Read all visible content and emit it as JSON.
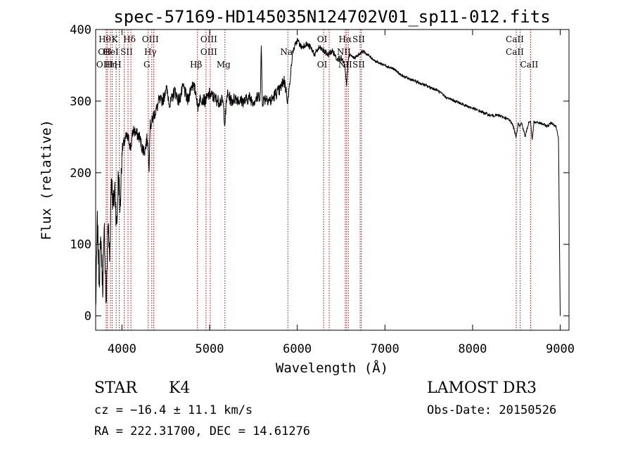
{
  "chart_data": {
    "type": "line",
    "title": "spec-57169-HD145035N124702V01_sp11-012.fits",
    "xlabel": "Wavelength (Å)",
    "ylabel": "Flux (relative)",
    "xlim": [
      3700,
      9100
    ],
    "ylim": [
      -20,
      400
    ],
    "xticks": [
      4000,
      5000,
      6000,
      7000,
      8000,
      9000
    ],
    "yticks": [
      0,
      100,
      200,
      300,
      400
    ],
    "series": [
      {
        "name": "flux",
        "x": [
          3700,
          3720,
          3740,
          3760,
          3780,
          3800,
          3820,
          3840,
          3860,
          3880,
          3900,
          3920,
          3940,
          3960,
          3980,
          4000,
          4020,
          4050,
          4080,
          4100,
          4130,
          4160,
          4200,
          4230,
          4260,
          4290,
          4310,
          4320,
          4340,
          4360,
          4380,
          4400,
          4420,
          4450,
          4480,
          4500,
          4550,
          4600,
          4650,
          4700,
          4750,
          4800,
          4850,
          4861,
          4880,
          4900,
          4950,
          5000,
          5050,
          5100,
          5150,
          5175,
          5200,
          5250,
          5300,
          5350,
          5400,
          5450,
          5500,
          5550,
          5580,
          5590,
          5600,
          5650,
          5700,
          5750,
          5800,
          5850,
          5893,
          5950,
          6000,
          6050,
          6100,
          6150,
          6200,
          6250,
          6300,
          6350,
          6400,
          6450,
          6500,
          6540,
          6563,
          6580,
          6600,
          6650,
          6700,
          6750,
          6800,
          6900,
          7000,
          7100,
          7200,
          7300,
          7400,
          7500,
          7600,
          7700,
          7800,
          7900,
          8000,
          8100,
          8200,
          8300,
          8400,
          8450,
          8498,
          8520,
          8542,
          8560,
          8600,
          8640,
          8662,
          8680,
          8700,
          8750,
          8800,
          8850,
          8900,
          8950,
          8980,
          8990,
          9000
        ],
        "y": [
          10,
          130,
          50,
          110,
          40,
          120,
          10,
          130,
          80,
          200,
          150,
          180,
          120,
          200,
          150,
          230,
          240,
          250,
          245,
          235,
          260,
          255,
          250,
          235,
          230,
          250,
          210,
          265,
          270,
          280,
          285,
          290,
          300,
          300,
          305,
          320,
          295,
          315,
          300,
          320,
          300,
          325,
          310,
          290,
          300,
          305,
          300,
          310,
          305,
          300,
          300,
          270,
          310,
          300,
          305,
          300,
          300,
          305,
          300,
          305,
          310,
          380,
          300,
          305,
          300,
          310,
          315,
          330,
          300,
          370,
          385,
          375,
          380,
          375,
          365,
          375,
          370,
          365,
          370,
          360,
          360,
          350,
          320,
          355,
          365,
          360,
          365,
          370,
          365,
          355,
          350,
          345,
          335,
          330,
          325,
          320,
          315,
          305,
          300,
          295,
          290,
          285,
          280,
          280,
          275,
          270,
          250,
          270,
          265,
          270,
          250,
          270,
          272,
          245,
          270,
          270,
          268,
          265,
          270,
          265,
          250,
          120,
          0
        ]
      }
    ],
    "lines": [
      {
        "x": 3820,
        "labels": [
          "Hθ",
          "OII",
          "OIII"
        ]
      },
      {
        "x": 3835,
        "labels": []
      },
      {
        "x": 3869,
        "labels": [
          "",
          "",
          ""
        ]
      },
      {
        "x": 3889,
        "labels": [
          "",
          "HeI",
          "Hη"
        ]
      },
      {
        "x": 3934,
        "labels": [
          "K",
          "",
          ""
        ]
      },
      {
        "x": 3969,
        "labels": [
          "",
          "",
          "H"
        ]
      },
      {
        "x": 4026,
        "labels": [
          "",
          "",
          ""
        ]
      },
      {
        "x": 4069,
        "labels": [
          "",
          "SII",
          ""
        ]
      },
      {
        "x": 4102,
        "labels": [
          "Hδ",
          "",
          ""
        ]
      },
      {
        "x": 4300,
        "labels": [
          "",
          "",
          "G"
        ]
      },
      {
        "x": 4340,
        "labels": [
          "OIII",
          "Hγ",
          ""
        ]
      },
      {
        "x": 4363,
        "labels": []
      },
      {
        "x": 4861,
        "labels": [
          "",
          "",
          "Hβ"
        ]
      },
      {
        "x": 4959,
        "labels": []
      },
      {
        "x": 5007,
        "labels": [
          "OIII",
          "OIII",
          ""
        ]
      },
      {
        "x": 5175,
        "labels": [
          "",
          "",
          "Mg"
        ]
      },
      {
        "x": 5893,
        "labels": [
          "",
          "Na",
          ""
        ]
      },
      {
        "x": 6300,
        "labels": [
          "OI",
          "",
          "OI"
        ]
      },
      {
        "x": 6364,
        "labels": []
      },
      {
        "x": 6548,
        "labels": [
          "",
          "NII",
          ""
        ]
      },
      {
        "x": 6563,
        "labels": [
          "Hα",
          "",
          "NII"
        ]
      },
      {
        "x": 6583,
        "labels": []
      },
      {
        "x": 6717,
        "labels": [
          "SII",
          "",
          "SII"
        ]
      },
      {
        "x": 6731,
        "labels": []
      },
      {
        "x": 8498,
        "labels": [
          "CaII",
          "CaII",
          ""
        ]
      },
      {
        "x": 8542,
        "labels": []
      },
      {
        "x": 8662,
        "labels": [
          "",
          "",
          "CaII"
        ]
      }
    ]
  },
  "info": {
    "object_type": "STAR",
    "subclass": "K4",
    "survey": "LAMOST DR3",
    "cz": "cz = −16.4 ± 11.1 km/s",
    "obs_date": "Obs-Date: 20150526",
    "coords": "RA = 222.31700, DEC =  14.61276"
  }
}
